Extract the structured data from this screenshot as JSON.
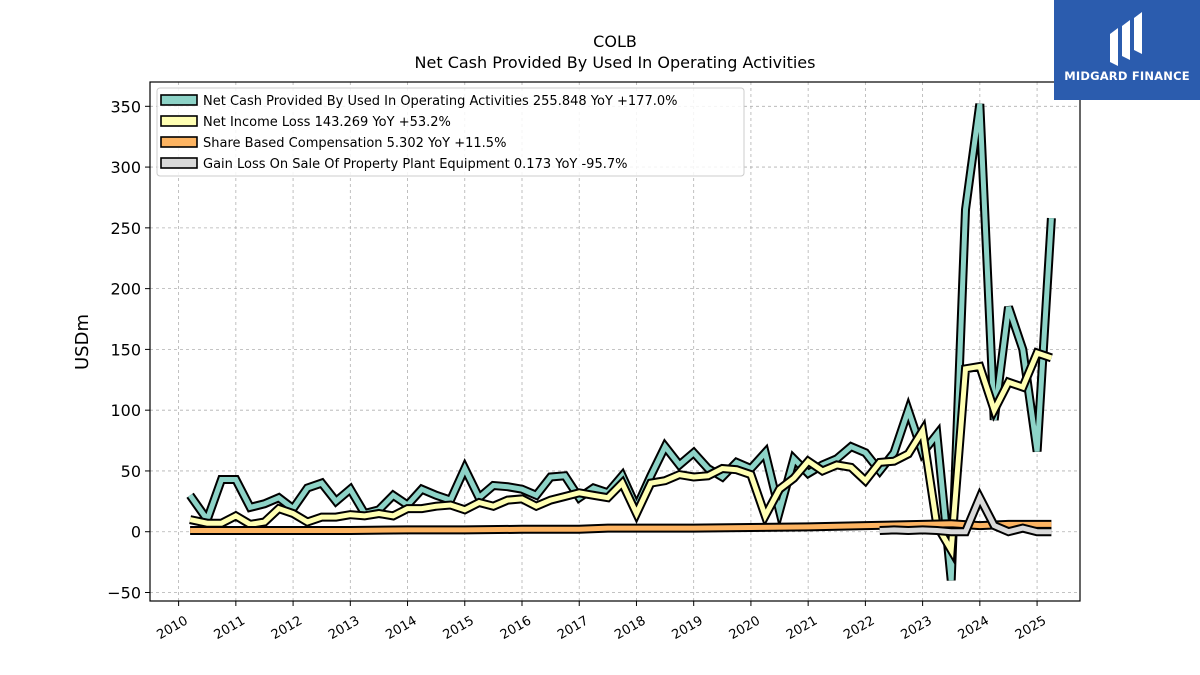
{
  "chart_data": {
    "type": "line",
    "title": "COLB",
    "subtitle": "Net Cash Provided By Used In Operating Activities",
    "ylabel": "USDm",
    "xlabel": "",
    "ylim": [
      -57,
      370
    ],
    "xlim": [
      2009.5,
      2025.75
    ],
    "yticks": [
      -50,
      0,
      50,
      100,
      150,
      200,
      250,
      300,
      350
    ],
    "xticks": [
      2010,
      2011,
      2012,
      2013,
      2014,
      2015,
      2016,
      2017,
      2018,
      2019,
      2020,
      2021,
      2022,
      2023,
      2024,
      2025
    ],
    "grid": true,
    "legend_position": "top-left",
    "series": [
      {
        "name": "Net Cash Provided By Used In Operating Activities",
        "legend": "Net Cash Provided By Used In Operating Activities  255.848 YoY +177.0%",
        "color": "#8dd3c7",
        "points": [
          [
            2010.2,
            30
          ],
          [
            2010.5,
            10
          ],
          [
            2010.75,
            43
          ],
          [
            2011.0,
            43
          ],
          [
            2011.25,
            20
          ],
          [
            2011.5,
            23
          ],
          [
            2011.75,
            28
          ],
          [
            2012.0,
            19
          ],
          [
            2012.25,
            36
          ],
          [
            2012.5,
            40
          ],
          [
            2012.75,
            25
          ],
          [
            2013.0,
            35
          ],
          [
            2013.25,
            15
          ],
          [
            2013.5,
            18
          ],
          [
            2013.75,
            30
          ],
          [
            2014.0,
            22
          ],
          [
            2014.25,
            35
          ],
          [
            2014.5,
            30
          ],
          [
            2014.75,
            26
          ],
          [
            2015.0,
            52
          ],
          [
            2015.25,
            28
          ],
          [
            2015.5,
            38
          ],
          [
            2015.75,
            37
          ],
          [
            2016.0,
            35
          ],
          [
            2016.25,
            30
          ],
          [
            2016.5,
            45
          ],
          [
            2016.75,
            46
          ],
          [
            2017.0,
            28
          ],
          [
            2017.25,
            36
          ],
          [
            2017.5,
            32
          ],
          [
            2017.75,
            46
          ],
          [
            2018.0,
            20
          ],
          [
            2018.25,
            46
          ],
          [
            2018.5,
            70
          ],
          [
            2018.75,
            55
          ],
          [
            2019.0,
            65
          ],
          [
            2019.25,
            52
          ],
          [
            2019.5,
            45
          ],
          [
            2019.75,
            57
          ],
          [
            2020.0,
            52
          ],
          [
            2020.25,
            65
          ],
          [
            2020.5,
            17
          ],
          [
            2020.75,
            60
          ],
          [
            2021.0,
            48
          ],
          [
            2021.25,
            55
          ],
          [
            2021.5,
            60
          ],
          [
            2021.75,
            70
          ],
          [
            2022.0,
            65
          ],
          [
            2022.25,
            50
          ],
          [
            2022.5,
            65
          ],
          [
            2022.75,
            100
          ],
          [
            2023.0,
            65
          ],
          [
            2023.25,
            80
          ],
          [
            2023.5,
            -40
          ],
          [
            2023.75,
            265
          ],
          [
            2024.0,
            352
          ],
          [
            2024.25,
            92
          ],
          [
            2024.5,
            185
          ],
          [
            2024.75,
            150
          ],
          [
            2025.0,
            66
          ],
          [
            2025.25,
            258
          ]
        ]
      },
      {
        "name": "Net Income Loss",
        "legend": "Net Income Loss  143.269 YoY +53.2%",
        "color": "#ffffb3",
        "points": [
          [
            2010.2,
            10
          ],
          [
            2010.5,
            7
          ],
          [
            2010.75,
            7
          ],
          [
            2011.0,
            13
          ],
          [
            2011.25,
            6
          ],
          [
            2011.5,
            8
          ],
          [
            2011.75,
            19
          ],
          [
            2012.0,
            15
          ],
          [
            2012.25,
            8
          ],
          [
            2012.5,
            12
          ],
          [
            2012.75,
            12
          ],
          [
            2013.0,
            14
          ],
          [
            2013.25,
            13
          ],
          [
            2013.5,
            15
          ],
          [
            2013.75,
            13
          ],
          [
            2014.0,
            19
          ],
          [
            2014.25,
            19
          ],
          [
            2014.5,
            21
          ],
          [
            2014.75,
            22
          ],
          [
            2015.0,
            18
          ],
          [
            2015.25,
            24
          ],
          [
            2015.5,
            21
          ],
          [
            2015.75,
            26
          ],
          [
            2016.0,
            27
          ],
          [
            2016.25,
            21
          ],
          [
            2016.5,
            26
          ],
          [
            2016.75,
            29
          ],
          [
            2017.0,
            32
          ],
          [
            2017.25,
            30
          ],
          [
            2017.5,
            28
          ],
          [
            2017.75,
            40
          ],
          [
            2018.0,
            15
          ],
          [
            2018.25,
            40
          ],
          [
            2018.5,
            42
          ],
          [
            2018.75,
            47
          ],
          [
            2019.0,
            45
          ],
          [
            2019.25,
            46
          ],
          [
            2019.5,
            52
          ],
          [
            2019.75,
            51
          ],
          [
            2020.0,
            47
          ],
          [
            2020.25,
            13
          ],
          [
            2020.5,
            35
          ],
          [
            2020.75,
            44
          ],
          [
            2021.0,
            58
          ],
          [
            2021.25,
            50
          ],
          [
            2021.5,
            55
          ],
          [
            2021.75,
            53
          ],
          [
            2022.0,
            42
          ],
          [
            2022.25,
            57
          ],
          [
            2022.5,
            58
          ],
          [
            2022.75,
            64
          ],
          [
            2023.0,
            83
          ],
          [
            2023.25,
            5
          ],
          [
            2023.5,
            -15
          ],
          [
            2023.75,
            134
          ],
          [
            2024.0,
            136
          ],
          [
            2024.25,
            100
          ],
          [
            2024.5,
            123
          ],
          [
            2024.75,
            119
          ],
          [
            2025.0,
            147
          ],
          [
            2025.25,
            143
          ]
        ]
      },
      {
        "name": "Share Based Compensation",
        "legend": "Share Based Compensation  5.302 YoY +11.5%",
        "color": "#fdb462",
        "points": [
          [
            2010.2,
            1
          ],
          [
            2011.0,
            1
          ],
          [
            2012.0,
            1
          ],
          [
            2013.0,
            1
          ],
          [
            2014.0,
            1.5
          ],
          [
            2015.0,
            1.5
          ],
          [
            2016.0,
            2
          ],
          [
            2017.0,
            2
          ],
          [
            2017.5,
            3
          ],
          [
            2018.0,
            3
          ],
          [
            2019.0,
            3
          ],
          [
            2020.0,
            3.5
          ],
          [
            2021.0,
            4
          ],
          [
            2022.0,
            5
          ],
          [
            2023.0,
            6
          ],
          [
            2023.5,
            6.5
          ],
          [
            2024.0,
            5
          ],
          [
            2024.5,
            6
          ],
          [
            2025.25,
            6
          ]
        ]
      },
      {
        "name": "Gain Loss On Sale Of Property Plant Equipment",
        "legend": "Gain Loss On Sale Of Property Plant Equipment  0.173 YoY -95.7%",
        "color": "#d9d9d9",
        "points": [
          [
            2022.25,
            1
          ],
          [
            2022.5,
            1.5
          ],
          [
            2022.75,
            1
          ],
          [
            2023.0,
            1.5
          ],
          [
            2023.25,
            1
          ],
          [
            2023.5,
            0
          ],
          [
            2023.75,
            0
          ],
          [
            2024.0,
            28
          ],
          [
            2024.25,
            5
          ],
          [
            2024.5,
            0
          ],
          [
            2024.75,
            3
          ],
          [
            2025.0,
            0
          ],
          [
            2025.25,
            0
          ]
        ]
      }
    ]
  },
  "logo": {
    "text": "MIDGARD FINANCE",
    "background": "#2b5cae"
  }
}
